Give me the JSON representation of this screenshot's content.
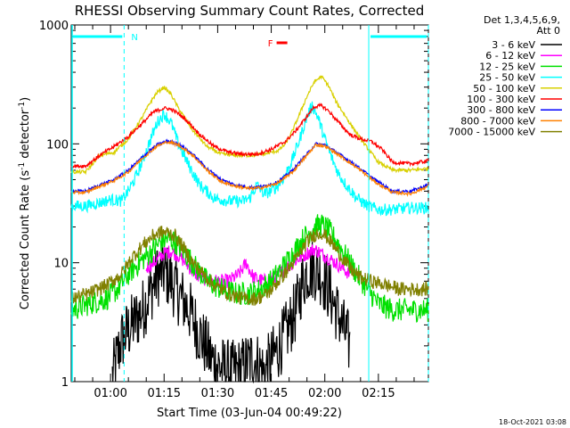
{
  "chart_data": {
    "type": "line",
    "title": "RHESSI Observing Summary Count Rates, Corrected",
    "xlabel": "Start Time (03-Jun-04 00:49:22)",
    "ylabel_main": "Corrected Count Rate (s",
    "ylabel_sup1": "-1",
    "ylabel_mid": " detector",
    "ylabel_sup2": "-1",
    "ylabel_end": ")",
    "y_scale": "log",
    "ylim": [
      1,
      1000
    ],
    "xlim_minutes": [
      0,
      100
    ],
    "x_tick_minutes": [
      11,
      26,
      41,
      56,
      71,
      86
    ],
    "x_tick_labels": [
      "01:00",
      "01:15",
      "01:30",
      "01:45",
      "02:00",
      "02:15"
    ],
    "y_tick_values": [
      1,
      10,
      100,
      1000
    ],
    "y_tick_labels": [
      "1",
      "10",
      "100",
      "1000"
    ],
    "legend": {
      "header_line1": "Det 1,3,4,5,6,9,",
      "header_line2": "Att 0",
      "position": "outside-right",
      "entries": [
        {
          "label": "3 - 6 keV",
          "color": "#000000"
        },
        {
          "label": "6 - 12 keV",
          "color": "#ff00ff"
        },
        {
          "label": "12 - 25 keV",
          "color": "#00e000"
        },
        {
          "label": "25 - 50 keV",
          "color": "#00ffff"
        },
        {
          "label": "50 - 100 keV",
          "color": "#d8d000"
        },
        {
          "label": "100 - 300 keV",
          "color": "#ff0000"
        },
        {
          "label": "300 - 800 keV",
          "color": "#0000ff"
        },
        {
          "label": "800 - 7000 keV",
          "color": "#ff8000"
        },
        {
          "label": "7000 - 15000 keV",
          "color": "#808000"
        }
      ]
    },
    "annotations": {
      "night_label": "N",
      "flare_label": "F",
      "timestamp": "18-Oct-2021 03:08"
    },
    "night_intervals_minutes": [
      [
        0,
        14.8
      ],
      [
        83.3,
        100
      ]
    ],
    "flare_interval_minutes": [
      57.5,
      60.5
    ],
    "series": [
      {
        "name": "3 - 6 keV",
        "color": "#000000",
        "noise": 0.55,
        "x": [
          11.5,
          14,
          17,
          20,
          23,
          24.5,
          26,
          28,
          30,
          33,
          36,
          39,
          42,
          45,
          48,
          51,
          54,
          57,
          60,
          63,
          64.5,
          66,
          68,
          70,
          72,
          75,
          78
        ],
        "y": [
          1.1,
          2.2,
          3.0,
          4.0,
          6.5,
          8.0,
          8.5,
          7.0,
          5.5,
          4.0,
          2.5,
          1.6,
          1.3,
          1.2,
          1.3,
          1.6,
          1.2,
          1.7,
          2.5,
          4.0,
          6.5,
          8.5,
          9.0,
          8.0,
          6.0,
          3.5,
          2.0
        ]
      },
      {
        "name": "6 - 12 keV",
        "color": "#ff00ff",
        "noise": 0.12,
        "x": [
          21,
          24,
          26,
          28,
          30,
          32,
          34,
          36,
          40,
          44,
          47,
          49,
          51,
          54,
          56,
          58,
          60,
          63,
          66,
          68,
          70,
          73,
          76,
          78
        ],
        "y": [
          9.0,
          10.5,
          12.0,
          12.5,
          11.5,
          10.0,
          8.5,
          7.5,
          7.0,
          7.0,
          8.0,
          10.0,
          7.5,
          7.0,
          7.2,
          8.0,
          9.0,
          10.5,
          12.0,
          13.0,
          12.0,
          10.5,
          9.0,
          8.0
        ]
      },
      {
        "name": "12 - 25 keV",
        "color": "#00e000",
        "noise": 0.2,
        "x": [
          0,
          5,
          10,
          13,
          16,
          19,
          22,
          25,
          27,
          29,
          32,
          35,
          38,
          42,
          46,
          50,
          53,
          56,
          59,
          62,
          65,
          68,
          70,
          72,
          75,
          78,
          80,
          83,
          86,
          90,
          95,
          100
        ],
        "y": [
          4.0,
          4.5,
          5.0,
          6.0,
          8.0,
          10.0,
          12.0,
          15.0,
          16.0,
          15.0,
          12.0,
          9.0,
          7.0,
          6.0,
          5.5,
          5.5,
          6.0,
          7.0,
          9.0,
          12.0,
          16.0,
          20.0,
          21.0,
          19.0,
          14.0,
          10.0,
          8.0,
          6.0,
          4.5,
          4.0,
          4.0,
          4.0
        ]
      },
      {
        "name": "25 - 50 keV",
        "color": "#00ffff",
        "noise": 0.1,
        "x": [
          0,
          4,
          8,
          11,
          14,
          16,
          18,
          20,
          22,
          24,
          26,
          28,
          30,
          33,
          36,
          40,
          44,
          48,
          50,
          52,
          54,
          56,
          58,
          60,
          62,
          64,
          66,
          67.5,
          69,
          71,
          73,
          75,
          77,
          80,
          83,
          86,
          90,
          95,
          100
        ],
        "y": [
          30,
          30,
          32,
          34,
          33,
          40,
          52,
          72,
          105,
          150,
          180,
          150,
          100,
          65,
          45,
          35,
          33,
          33,
          35,
          45,
          38,
          40,
          45,
          55,
          75,
          110,
          170,
          210,
          170,
          110,
          75,
          55,
          45,
          35,
          30,
          28,
          28,
          29,
          29
        ]
      },
      {
        "name": "50 - 100 keV",
        "color": "#d8d000",
        "noise": 0.03,
        "x": [
          0,
          4,
          8,
          12,
          16,
          20,
          22,
          24,
          26,
          28,
          30,
          34,
          38,
          42,
          46,
          50,
          54,
          58,
          60,
          62,
          64,
          66,
          68,
          70,
          72,
          74,
          78,
          82,
          86,
          90,
          95,
          100
        ],
        "y": [
          58,
          58,
          80,
          85,
          110,
          170,
          220,
          270,
          300,
          260,
          200,
          130,
          95,
          82,
          80,
          80,
          82,
          88,
          100,
          130,
          180,
          250,
          330,
          370,
          310,
          230,
          150,
          100,
          70,
          60,
          60,
          62
        ]
      },
      {
        "name": "100 - 300 keV",
        "color": "#ff0000",
        "noise": 0.03,
        "x": [
          0,
          4,
          8,
          12,
          16,
          20,
          23,
          26,
          28,
          30,
          33,
          36,
          40,
          44,
          48,
          52,
          56,
          60,
          63,
          66,
          68,
          70,
          72,
          75,
          78,
          81,
          84,
          87,
          90,
          95,
          100
        ],
        "y": [
          65,
          65,
          80,
          95,
          115,
          150,
          185,
          200,
          195,
          180,
          150,
          120,
          95,
          85,
          82,
          82,
          90,
          105,
          130,
          170,
          205,
          210,
          190,
          150,
          120,
          110,
          105,
          90,
          70,
          68,
          72
        ]
      },
      {
        "name": "300 - 800 keV",
        "color": "#0000ff",
        "noise": 0.025,
        "x": [
          0,
          4,
          8,
          12,
          16,
          20,
          24,
          27,
          30,
          34,
          38,
          42,
          46,
          50,
          54,
          58,
          62,
          66,
          68.5,
          71,
          75,
          80,
          85,
          90,
          95,
          100
        ],
        "y": [
          40,
          40,
          45,
          50,
          60,
          78,
          98,
          106,
          100,
          82,
          62,
          50,
          45,
          43,
          44,
          48,
          60,
          82,
          100,
          98,
          82,
          65,
          50,
          40,
          40,
          45
        ]
      },
      {
        "name": "800 - 7000 keV",
        "color": "#ff8000",
        "noise": 0.025,
        "x": [
          0,
          4,
          8,
          12,
          16,
          20,
          24,
          27,
          30,
          34,
          38,
          42,
          46,
          50,
          54,
          58,
          62,
          66,
          68.5,
          71,
          75,
          80,
          85,
          90,
          95,
          100
        ],
        "y": [
          39,
          39,
          44,
          49,
          58,
          76,
          96,
          104,
          98,
          80,
          60,
          48,
          44,
          42,
          43,
          47,
          58,
          80,
          98,
          96,
          80,
          63,
          48,
          39,
          38,
          44
        ]
      },
      {
        "name": "7000 - 15000 keV",
        "color": "#808000",
        "noise": 0.12,
        "x": [
          0,
          5,
          10,
          14,
          17,
          20,
          23,
          25,
          27,
          29,
          31,
          34,
          37,
          40,
          44,
          48,
          52,
          55,
          58,
          61,
          64,
          66,
          68,
          70,
          72,
          75,
          78,
          81,
          84,
          88,
          92,
          96,
          100
        ],
        "y": [
          5.0,
          5.5,
          6.5,
          8.0,
          11.0,
          14.0,
          17.0,
          18.0,
          18.0,
          17.0,
          14.0,
          10.0,
          8.0,
          6.5,
          5.5,
          5.0,
          5.0,
          5.5,
          7.0,
          9.0,
          12.0,
          15.0,
          17.0,
          18.0,
          16.0,
          12.0,
          9.0,
          7.5,
          7.0,
          6.5,
          6.0,
          6.0,
          6.0
        ]
      }
    ]
  }
}
